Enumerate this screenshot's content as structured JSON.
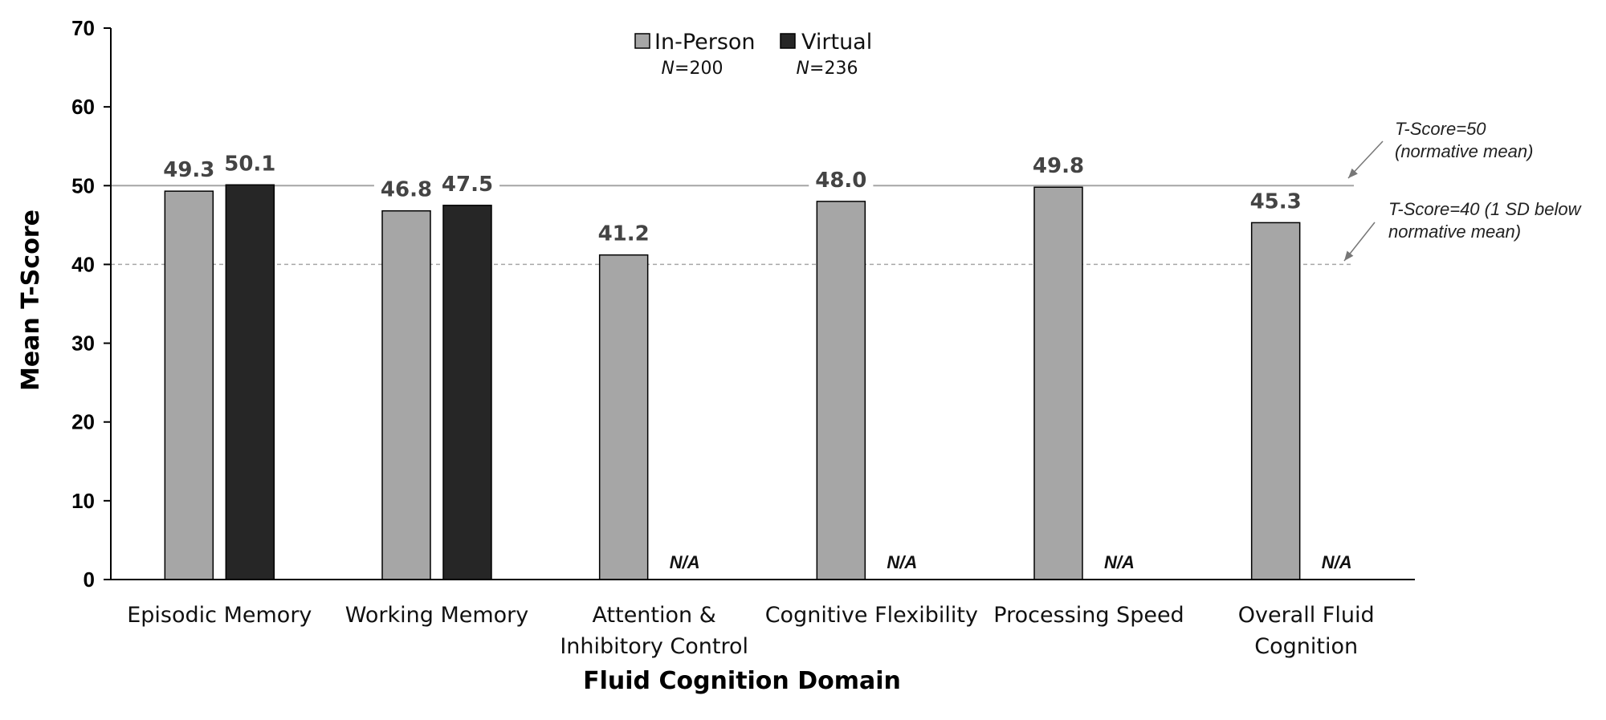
{
  "chart_data": {
    "type": "bar",
    "title": "",
    "xlabel": "Fluid Cognition Domain",
    "ylabel": "Mean T-Score",
    "ylim": [
      0,
      70
    ],
    "yticks": [
      0,
      10,
      20,
      30,
      40,
      50,
      60,
      70
    ],
    "categories": [
      [
        "Episodic Memory"
      ],
      [
        "Working Memory"
      ],
      [
        "Attention &",
        "Inhibitory Control"
      ],
      [
        "Cognitive Flexibility"
      ],
      [
        "Processing Speed"
      ],
      [
        "Overall Fluid",
        "Cognition"
      ]
    ],
    "series": [
      {
        "name": "In-Person",
        "n_label": "N=200",
        "color": "#a6a6a6",
        "values": [
          49.3,
          46.8,
          41.2,
          48.0,
          49.8,
          45.3
        ],
        "labels": [
          "49.3",
          "46.8",
          "41.2",
          "48.0",
          "49.8",
          "45.3"
        ]
      },
      {
        "name": "Virtual",
        "n_label": "N=236",
        "color": "#262626",
        "values": [
          50.1,
          47.5,
          null,
          null,
          null,
          null
        ],
        "labels": [
          "50.1",
          "47.5",
          "N/A",
          "N/A",
          "N/A",
          "N/A"
        ]
      }
    ],
    "legend_position": "top-center",
    "reference_lines": [
      {
        "value": 50,
        "style": "solid",
        "color": "#a6a6a6",
        "annotation": [
          "T-Score=50",
          "(normative mean)"
        ]
      },
      {
        "value": 40,
        "style": "dashed",
        "color": "#a6a6a6",
        "annotation": [
          "T-Score=40 (1 SD below",
          "normative mean)"
        ]
      }
    ],
    "grid": false
  }
}
